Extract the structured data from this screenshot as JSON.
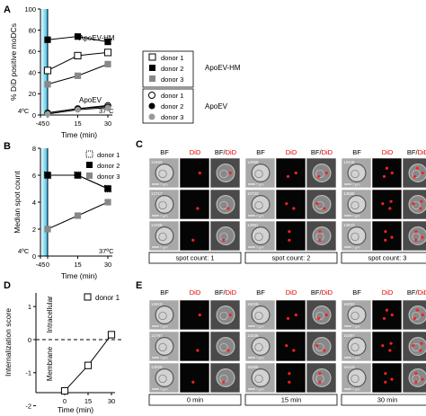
{
  "panel_letters": [
    "A",
    "B",
    "C",
    "D",
    "E"
  ],
  "panelA": {
    "ylabel": "% DiD positive moDCs",
    "xlabel": "Time (min)",
    "yticks": [
      "0",
      "20",
      "40",
      "60",
      "80",
      "100"
    ],
    "xticks": [
      "-45",
      "0",
      "15",
      "30"
    ],
    "label_hm": "ApoEV-HM",
    "label_ev": "ApoEV",
    "temp_cold": "4ºC",
    "temp_warm": "37ºC",
    "legend_hm": {
      "group": "ApoEV-HM",
      "entries": [
        "donor 1",
        "donor 2",
        "donor 3"
      ]
    },
    "legend_ev": {
      "group": "ApoEV",
      "entries": [
        "donor 1",
        "donor 2",
        "donor 3"
      ]
    }
  },
  "panelB": {
    "ylabel": "Median spot count",
    "xlabel": "Time (min)",
    "yticks": [
      "0",
      "2",
      "4",
      "6",
      "8"
    ],
    "xticks": [
      "-45",
      "0",
      "15",
      "30"
    ],
    "legend": [
      "donor 1",
      "donor 2",
      "donor 3"
    ],
    "temp_cold": "4ºC",
    "temp_warm": "37ºC"
  },
  "panelC": {
    "col_headers": [
      "BF",
      "DiD",
      "BF/DiD"
    ],
    "groups": [
      {
        "label": "spot count: 1",
        "ids": [
          "13463",
          "12717",
          "12458"
        ]
      },
      {
        "label": "spot count: 2",
        "ids": [
          "13068",
          "10723",
          "12961"
        ]
      },
      {
        "label": "spot count: 3",
        "ids": [
          "12446",
          "13685",
          "13943"
        ]
      }
    ],
    "scale": "7 μm"
  },
  "panelD": {
    "ylabel": "Internalization score",
    "xlabel": "Time (min)",
    "yticks": [
      "-2",
      "-1",
      "0",
      "1"
    ],
    "xticks": [
      "0",
      "15",
      "30"
    ],
    "legend": [
      "donor 1"
    ],
    "side_top": "Intracellular",
    "side_bottom": "Membrane"
  },
  "panelE": {
    "col_headers": [
      "BF",
      "DiD",
      "BF/DiD"
    ],
    "groups": [
      {
        "label": "0 min",
        "ids": [
          "12810",
          "12787",
          "13009"
        ]
      },
      {
        "label": "15 min",
        "ids": [
          "15226",
          "15436",
          "15265"
        ]
      },
      {
        "label": "30 min",
        "ids": [
          "16293",
          "16397",
          "16416"
        ]
      }
    ],
    "scale": "7 μm"
  },
  "chart_data": [
    {
      "type": "line",
      "panel": "A",
      "xlabel": "Time (min)",
      "ylabel": "% DiD positive moDCs",
      "xlim": [
        -45,
        30
      ],
      "ylim": [
        0,
        100
      ],
      "x": [
        0,
        15,
        30
      ],
      "series": [
        {
          "name": "ApoEV-HM donor 1",
          "values": [
            42,
            56,
            59
          ],
          "marker": "open-square"
        },
        {
          "name": "ApoEV-HM donor 2",
          "values": [
            71,
            74,
            69
          ],
          "marker": "filled-square"
        },
        {
          "name": "ApoEV-HM donor 3",
          "values": [
            29,
            37,
            48
          ],
          "marker": "gray-square"
        },
        {
          "name": "ApoEV donor 1",
          "values": [
            2,
            6,
            9
          ],
          "marker": "open-circle"
        },
        {
          "name": "ApoEV donor 2",
          "values": [
            2,
            6,
            8
          ],
          "marker": "filled-circle"
        },
        {
          "name": "ApoEV donor 3",
          "values": [
            1,
            5,
            7
          ],
          "marker": "gray-circle"
        }
      ]
    },
    {
      "type": "line",
      "panel": "B",
      "xlabel": "Time (min)",
      "ylabel": "Median spot count",
      "xlim": [
        -45,
        30
      ],
      "ylim": [
        0,
        8
      ],
      "x": [
        0,
        15,
        30
      ],
      "series": [
        {
          "name": "donor 1",
          "values": [
            6,
            6,
            5
          ],
          "marker": "dotted-square"
        },
        {
          "name": "donor 2",
          "values": [
            6,
            6,
            5
          ],
          "marker": "filled-square"
        },
        {
          "name": "donor 3",
          "values": [
            2,
            3,
            4
          ],
          "marker": "gray-square"
        }
      ]
    },
    {
      "type": "line",
      "panel": "D",
      "xlabel": "Time (min)",
      "ylabel": "Internalization score",
      "ylim": [
        -2,
        1
      ],
      "x": [
        0,
        15,
        30
      ],
      "series": [
        {
          "name": "donor 1",
          "values": [
            -1.55,
            -0.78,
            0.15
          ],
          "marker": "open-square"
        }
      ]
    }
  ]
}
